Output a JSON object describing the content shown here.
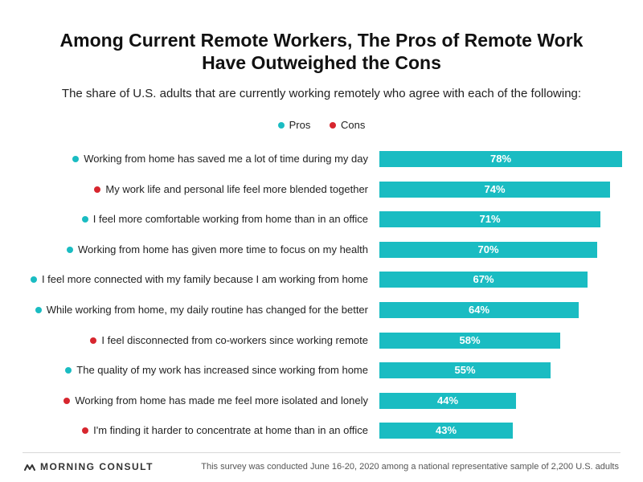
{
  "title_line1": "Among Current Remote Workers, The Pros of Remote Work",
  "title_line2": "Have Outweighed the Cons",
  "subtitle": "The share of U.S. adults that are currently working remotely who agree with each of the following:",
  "legend": {
    "pros_label": "Pros",
    "cons_label": "Cons",
    "pros_color": "#1ABCC2",
    "cons_color": "#D7262E"
  },
  "footer": {
    "brand": "MORNING CONSULT",
    "note": "This survey was conducted June 16-20, 2020 among a national representative sample of 2,200 U.S. adults"
  },
  "chart_data": {
    "type": "bar",
    "orientation": "horizontal",
    "categories": [
      "Working from home has saved me a lot of time during my day",
      "My work life and personal life feel more blended together",
      "I feel more comfortable working from home than in an office",
      "Working from home has given more time to focus on my health",
      "I feel more connected with my family because I am working from home",
      "While working from home, my daily routine has changed for the better",
      "I feel disconnected from co-workers since working remote",
      "The quality of my work has increased since working from home",
      "Working from home has made me feel more isolated and lonely",
      "I'm finding it harder to concentrate at home than in an office"
    ],
    "values": [
      78,
      74,
      71,
      70,
      67,
      64,
      58,
      55,
      44,
      43
    ],
    "value_labels": [
      "78%",
      "74%",
      "71%",
      "70%",
      "67%",
      "64%",
      "58%",
      "55%",
      "44%",
      "43%"
    ],
    "groups": [
      "Pros",
      "Cons",
      "Pros",
      "Pros",
      "Pros",
      "Pros",
      "Cons",
      "Pros",
      "Cons",
      "Cons"
    ],
    "bar_color": "#1ABCC2",
    "xlim": [
      0,
      78
    ],
    "grid": false,
    "legend_position": "top-center"
  }
}
